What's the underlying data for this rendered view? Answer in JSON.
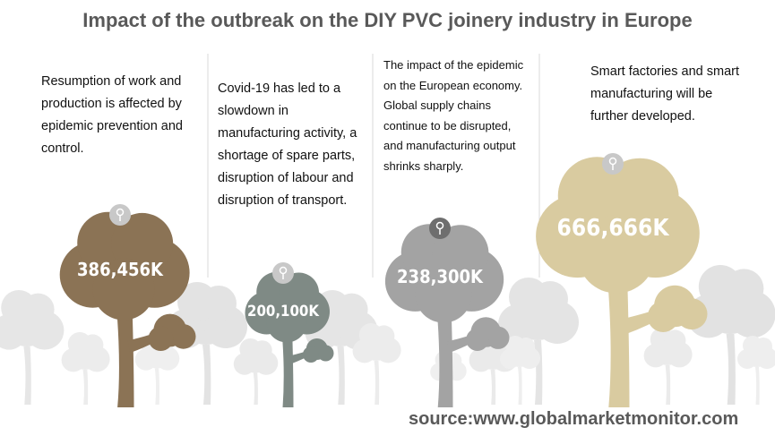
{
  "title": "Impact of the outbreak on the DIY PVC joinery industry in Europe",
  "columns": [
    {
      "lines": [
        "Resumption of work and",
        "production is affected by",
        "epidemic prevention and",
        "control."
      ],
      "value": "386,456K"
    },
    {
      "lines": [
        "Covid-19 has led to a",
        "slowdown in",
        "manufacturing activity, a",
        "shortage of spare parts,",
        "disruption of labour and",
        "disruption of transport."
      ],
      "value": "200,100K"
    },
    {
      "lines": [
        "The impact of the epidemic",
        "on the European economy.",
        "Global supply chains",
        "continue to be disrupted,",
        "and manufacturing output",
        "shrinks sharply."
      ],
      "value": "238,300K"
    },
    {
      "lines": [
        "Smart factories and smart",
        "manufacturing will be",
        "further developed."
      ],
      "value": "666,666K"
    }
  ],
  "source": "source:www.globalmarketmonitor.com"
}
